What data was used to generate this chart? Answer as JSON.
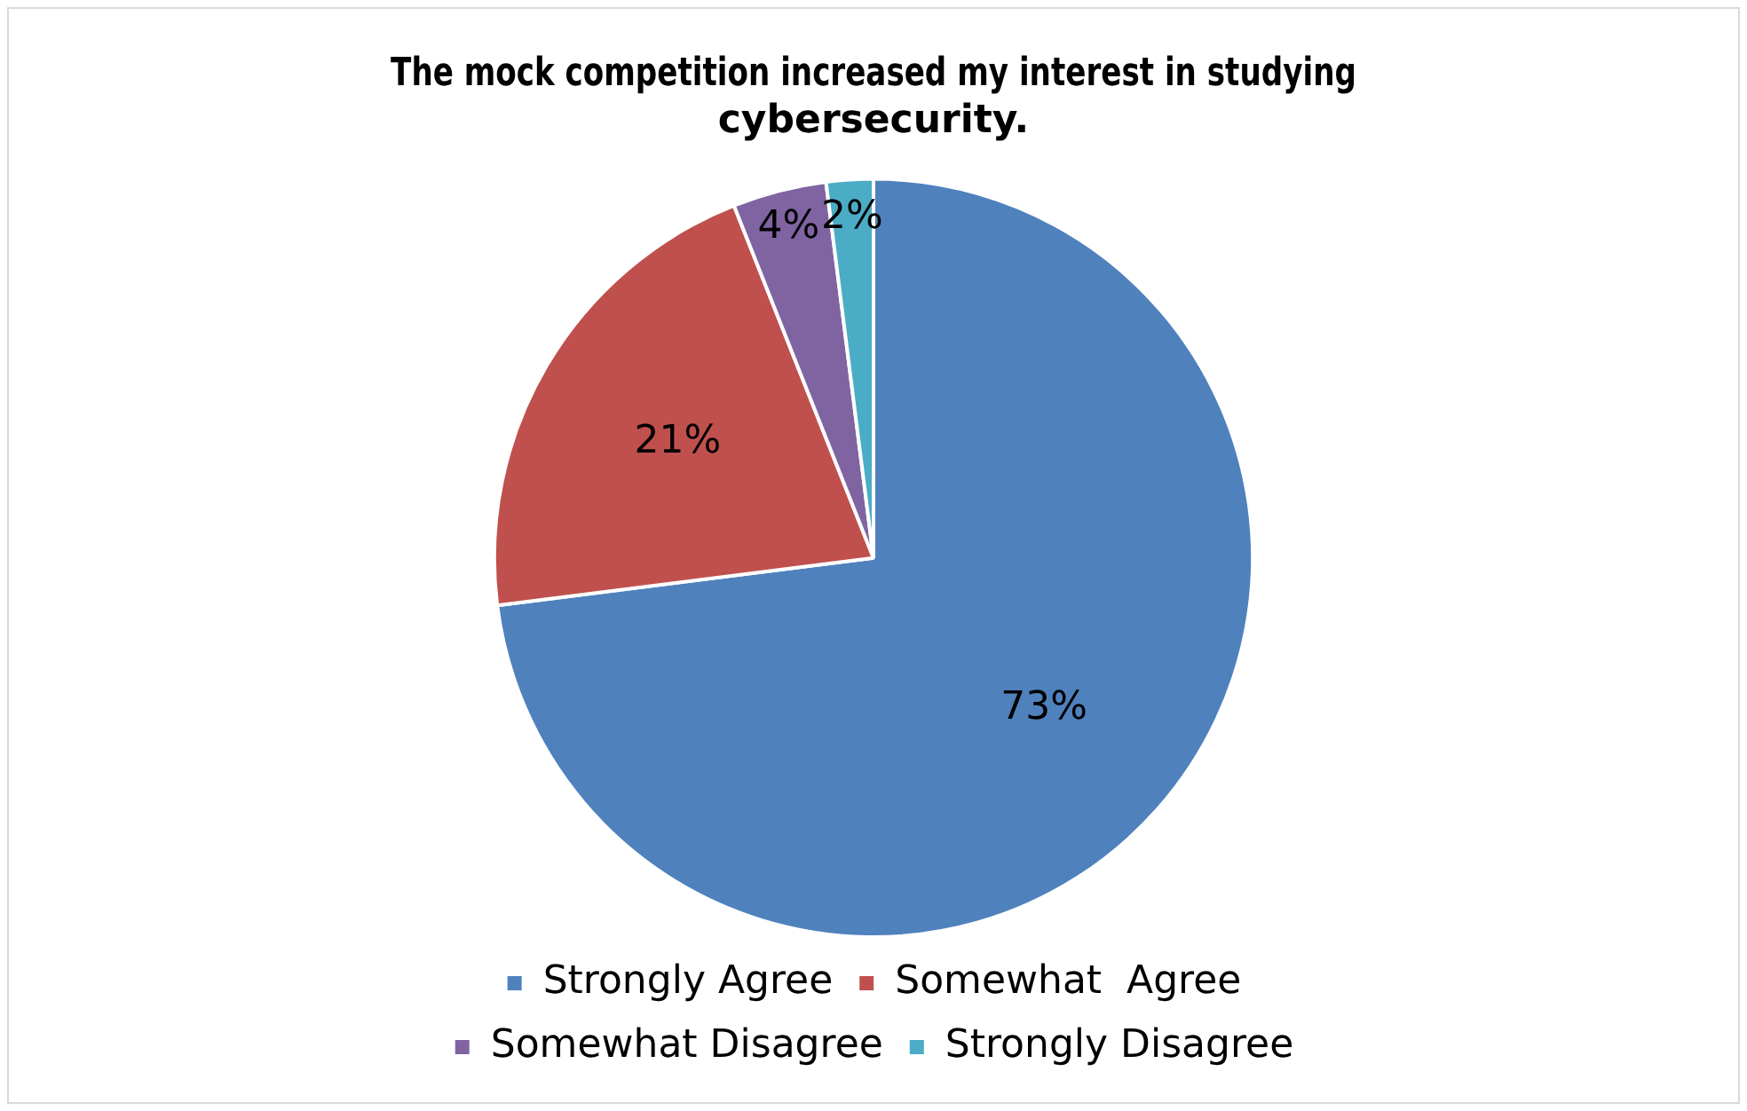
{
  "chart_data": {
    "type": "pie",
    "title": "The mock competition increased my interest in studying cybersecurity.",
    "categories": [
      "Strongly Agree",
      "Somewhat  Agree",
      "Somewhat Disagree",
      "Strongly Disagree"
    ],
    "values": [
      73,
      21,
      4,
      2
    ],
    "colors": [
      "#4f81bd",
      "#c0504d",
      "#8064a2",
      "#4bacc6"
    ],
    "value_labels": [
      "73%",
      "21%",
      "4%",
      "2%"
    ],
    "legend": "bottom"
  }
}
